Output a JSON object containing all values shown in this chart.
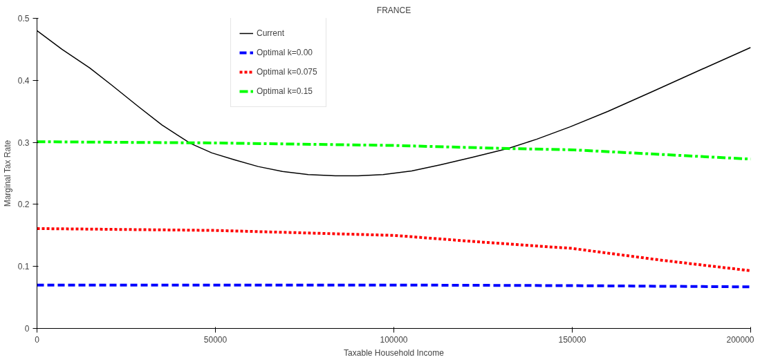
{
  "chart_data": {
    "type": "line",
    "title": "FRANCE",
    "xlabel": "Taxable Household Income",
    "ylabel": "Marginal Tax Rate",
    "xlim": [
      0,
      200000
    ],
    "ylim": [
      0,
      0.5
    ],
    "xticks": [
      0,
      50000,
      100000,
      150000,
      200000
    ],
    "yticks": [
      0,
      0.1,
      0.2,
      0.3,
      0.4,
      0.5
    ],
    "grid": false,
    "legend": "top",
    "tick_labels": true,
    "series": [
      {
        "name": "Current",
        "color": "#000000",
        "line_style": "solid",
        "x": [
          0,
          7000,
          14780,
          21000,
          28340,
          35000,
          43100,
          49000,
          55260,
          62000,
          68800,
          76000,
          83600,
          90000,
          97000,
          105000,
          113160,
          122000,
          132000,
          140000,
          149400,
          160000,
          172500,
          186000,
          200000
        ],
        "values": [
          0.48,
          0.45,
          0.42,
          0.392,
          0.358,
          0.328,
          0.298,
          0.283,
          0.272,
          0.261,
          0.253,
          0.248,
          0.246,
          0.246,
          0.248,
          0.254,
          0.264,
          0.276,
          0.29,
          0.305,
          0.325,
          0.35,
          0.382,
          0.417,
          0.453
        ]
      },
      {
        "name": "Optimal k=0.00",
        "color": "#0000ff",
        "line_style": "dashed",
        "x": [
          0,
          100000,
          150000,
          200000
        ],
        "values": [
          0.07,
          0.07,
          0.069,
          0.067
        ]
      },
      {
        "name": "Optimal k=0.075",
        "color": "#ff0000",
        "line_style": "dotted",
        "x": [
          0,
          50000,
          100000,
          125000,
          150000,
          175000,
          200000
        ],
        "values": [
          0.161,
          0.158,
          0.15,
          0.139,
          0.129,
          0.11,
          0.093
        ]
      },
      {
        "name": "Optimal k=0.15",
        "color": "#00ff00",
        "line_style": "dashdot",
        "x": [
          0,
          50000,
          100000,
          132000,
          150000,
          200000
        ],
        "values": [
          0.301,
          0.299,
          0.295,
          0.29,
          0.288,
          0.273
        ]
      }
    ]
  }
}
